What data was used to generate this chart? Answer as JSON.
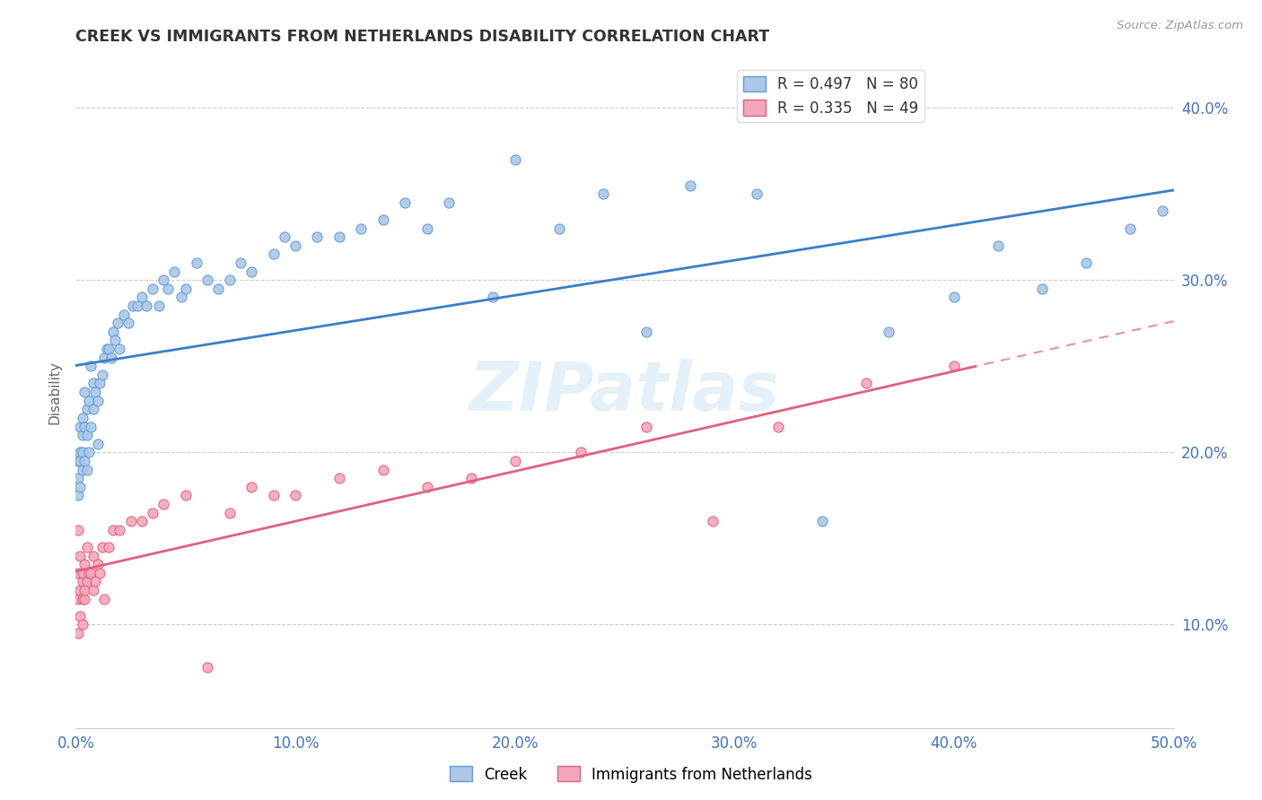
{
  "title": "CREEK VS IMMIGRANTS FROM NETHERLANDS DISABILITY CORRELATION CHART",
  "source": "Source: ZipAtlas.com",
  "ylabel": "Disability",
  "xlim": [
    0.0,
    0.5
  ],
  "ylim": [
    0.04,
    0.43
  ],
  "x_ticks": [
    0.0,
    0.1,
    0.2,
    0.3,
    0.4,
    0.5
  ],
  "x_tick_labels": [
    "0.0%",
    "10.0%",
    "20.0%",
    "30.0%",
    "40.0%",
    "50.0%"
  ],
  "y_ticks": [
    0.1,
    0.2,
    0.3,
    0.4
  ],
  "y_tick_labels": [
    "10.0%",
    "20.0%",
    "30.0%",
    "40.0%"
  ],
  "creek_color_fill": "#aec6e8",
  "creek_color_edge": "#5a9fd4",
  "netherlands_color_fill": "#f4a7b9",
  "netherlands_color_edge": "#e06080",
  "creek_line_color": "#3a7ec8",
  "netherlands_line_color": "#e06080",
  "watermark": "ZIPatlas",
  "legend_creek_label": "R = 0.497   N = 80",
  "legend_nl_label": "R = 0.335   N = 49",
  "bottom_creek_label": "Creek",
  "bottom_nl_label": "Immigrants from Netherlands",
  "creek_x": [
    0.001,
    0.001,
    0.001,
    0.002,
    0.002,
    0.002,
    0.002,
    0.003,
    0.003,
    0.003,
    0.003,
    0.004,
    0.004,
    0.004,
    0.005,
    0.005,
    0.005,
    0.006,
    0.006,
    0.007,
    0.007,
    0.008,
    0.008,
    0.009,
    0.01,
    0.01,
    0.011,
    0.012,
    0.013,
    0.014,
    0.015,
    0.016,
    0.017,
    0.018,
    0.019,
    0.02,
    0.022,
    0.024,
    0.026,
    0.028,
    0.03,
    0.032,
    0.035,
    0.038,
    0.04,
    0.042,
    0.045,
    0.048,
    0.05,
    0.055,
    0.06,
    0.065,
    0.07,
    0.075,
    0.08,
    0.09,
    0.095,
    0.1,
    0.11,
    0.12,
    0.13,
    0.14,
    0.15,
    0.16,
    0.17,
    0.19,
    0.2,
    0.22,
    0.24,
    0.26,
    0.28,
    0.31,
    0.34,
    0.37,
    0.4,
    0.42,
    0.44,
    0.46,
    0.48,
    0.495
  ],
  "creek_y": [
    0.185,
    0.175,
    0.195,
    0.2,
    0.215,
    0.18,
    0.195,
    0.21,
    0.19,
    0.2,
    0.22,
    0.195,
    0.215,
    0.235,
    0.19,
    0.21,
    0.225,
    0.2,
    0.23,
    0.215,
    0.25,
    0.225,
    0.24,
    0.235,
    0.205,
    0.23,
    0.24,
    0.245,
    0.255,
    0.26,
    0.26,
    0.255,
    0.27,
    0.265,
    0.275,
    0.26,
    0.28,
    0.275,
    0.285,
    0.285,
    0.29,
    0.285,
    0.295,
    0.285,
    0.3,
    0.295,
    0.305,
    0.29,
    0.295,
    0.31,
    0.3,
    0.295,
    0.3,
    0.31,
    0.305,
    0.315,
    0.325,
    0.32,
    0.325,
    0.325,
    0.33,
    0.335,
    0.345,
    0.33,
    0.345,
    0.29,
    0.37,
    0.33,
    0.35,
    0.27,
    0.355,
    0.35,
    0.16,
    0.27,
    0.29,
    0.32,
    0.295,
    0.31,
    0.33,
    0.34
  ],
  "netherlands_x": [
    0.001,
    0.001,
    0.001,
    0.001,
    0.002,
    0.002,
    0.002,
    0.003,
    0.003,
    0.003,
    0.003,
    0.004,
    0.004,
    0.004,
    0.005,
    0.005,
    0.006,
    0.007,
    0.008,
    0.008,
    0.009,
    0.01,
    0.011,
    0.012,
    0.013,
    0.015,
    0.017,
    0.02,
    0.025,
    0.03,
    0.035,
    0.04,
    0.05,
    0.06,
    0.07,
    0.08,
    0.09,
    0.1,
    0.12,
    0.14,
    0.16,
    0.18,
    0.2,
    0.23,
    0.26,
    0.29,
    0.32,
    0.36,
    0.4
  ],
  "netherlands_y": [
    0.155,
    0.13,
    0.115,
    0.095,
    0.14,
    0.12,
    0.105,
    0.125,
    0.115,
    0.1,
    0.13,
    0.115,
    0.135,
    0.12,
    0.125,
    0.145,
    0.13,
    0.13,
    0.12,
    0.14,
    0.125,
    0.135,
    0.13,
    0.145,
    0.115,
    0.145,
    0.155,
    0.155,
    0.16,
    0.16,
    0.165,
    0.17,
    0.175,
    0.075,
    0.165,
    0.18,
    0.175,
    0.175,
    0.185,
    0.19,
    0.18,
    0.185,
    0.195,
    0.2,
    0.215,
    0.16,
    0.215,
    0.24,
    0.25
  ]
}
